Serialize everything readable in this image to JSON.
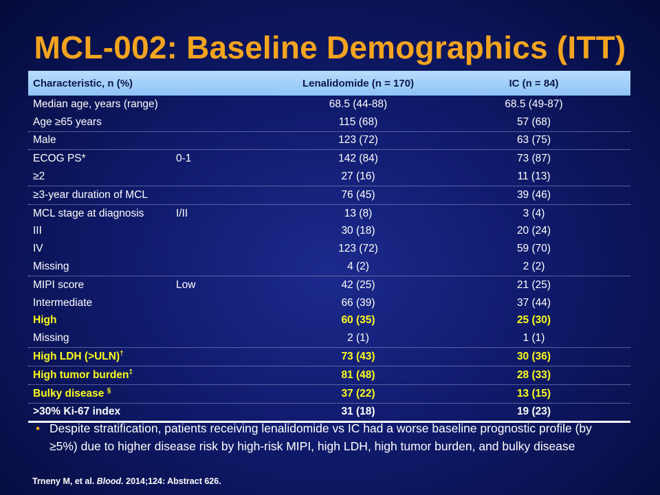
{
  "title": "MCL-002: Baseline Demographics (ITT)",
  "table": {
    "headers": [
      "Characteristic, n (%)",
      "Lenalidomide (n = 170)",
      "IC (n = 84)"
    ],
    "rows": [
      {
        "label": "Median age, years (range)",
        "sub": "",
        "len": "68.5 (44-88)",
        "ic": "68.5 (49-87)"
      },
      {
        "label": "Age ≥65 years",
        "sub": "",
        "len": "115 (68)",
        "ic": "57 (68)"
      },
      {
        "label": "Male",
        "sub": "",
        "len": "123 (72)",
        "ic": "63 (75)"
      },
      {
        "label": "ECOG PS*",
        "sub": "0-1",
        "len": "142 (84)",
        "ic": "73 (87)"
      },
      {
        "label": "≥2",
        "sub": "",
        "len": "27 (16)",
        "ic": "11 (13)"
      },
      {
        "label": "≥3-year duration of MCL",
        "sub": "",
        "len": "76 (45)",
        "ic": "39 (46)"
      },
      {
        "label": "MCL stage at diagnosis",
        "sub": "I/II",
        "len": "13 (8)",
        "ic": "3 (4)"
      },
      {
        "label": "III",
        "sub": "",
        "len": "30 (18)",
        "ic": "20 (24)"
      },
      {
        "label": "IV",
        "sub": "",
        "len": "123 (72)",
        "ic": "59 (70)"
      },
      {
        "label": "Missing",
        "sub": "",
        "len": "4 (2)",
        "ic": "2 (2)"
      },
      {
        "label": "MIPI score",
        "sub": "Low",
        "len": "42 (25)",
        "ic": "21 (25)"
      },
      {
        "label": "Intermediate",
        "sub": "",
        "len": "66 (39)",
        "ic": "37 (44)"
      },
      {
        "label": "High",
        "sub": "",
        "len": "60 (35)",
        "ic": "25 (30)"
      },
      {
        "label": "Missing",
        "sub": "",
        "len": "2 (1)",
        "ic": "1 (1)"
      },
      {
        "label": "High LDH (>ULN)",
        "sup": "†",
        "sub": "",
        "len": "73 (43)",
        "ic": "30 (36)"
      },
      {
        "label": "High tumor burden",
        "sup": "‡",
        "sub": "",
        "len": "81 (48)",
        "ic": "28 (33)"
      },
      {
        "label": "Bulky disease ",
        "sup": "§",
        "sub": "",
        "len": "37 (22)",
        "ic": "13 (15)"
      },
      {
        "label": ">30% Ki-67 index",
        "sub": "",
        "len": "31 (18)",
        "ic": "19 (23)"
      }
    ]
  },
  "bullet": "Despite stratification, patients receiving lenalidomide vs IC had a worse baseline prognostic profile (by ≥5%) due to higher disease risk by high-risk MIPI, high LDH, high tumor burden, and bulky disease",
  "reference": {
    "authors": "Trneny M, et al. ",
    "journal": "Blood.",
    "details": " 2014;124: Abstract 626."
  },
  "colors": {
    "title": "#f4a41e",
    "highlight": "#ffff1a",
    "header_bg": "#a6d2fb",
    "background": "#0f1a6b"
  }
}
